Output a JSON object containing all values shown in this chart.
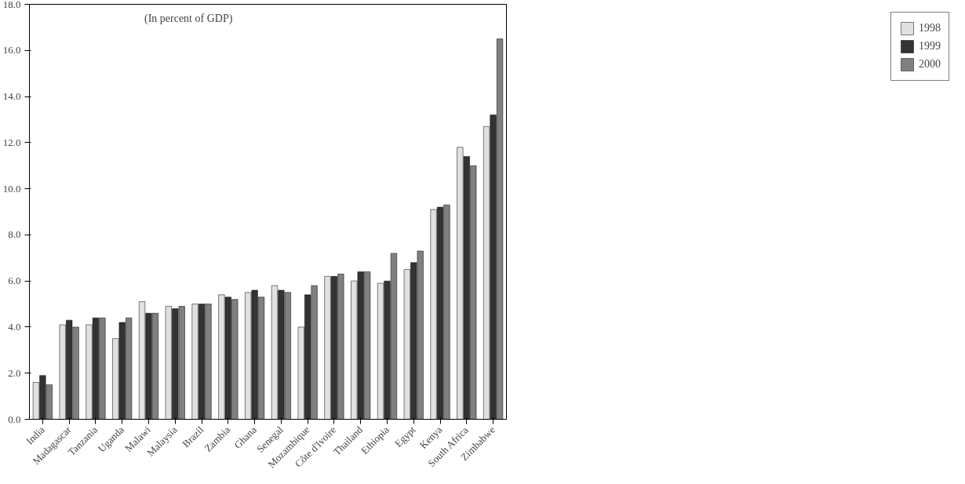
{
  "chart_data": {
    "type": "bar",
    "categories": [
      "India",
      "Madagascar",
      "Tanzania",
      "Uganda",
      "Malawi",
      "Malaysia",
      "Brazil",
      "Zambia",
      "Ghana",
      "Senegal",
      "Mozambique",
      "Côte d'Ivoire",
      "Thailand",
      "Ethiopia",
      "Egypt",
      "Kenya",
      "South Africa",
      "Zimbabwe"
    ],
    "series": [
      {
        "name": "1998",
        "color": "#e0e0e0",
        "values": [
          1.6,
          4.1,
          4.1,
          3.5,
          5.1,
          4.9,
          5.0,
          5.4,
          5.5,
          5.8,
          4.0,
          6.2,
          6.0,
          5.9,
          6.5,
          9.1,
          11.8,
          12.7
        ]
      },
      {
        "name": "1999",
        "color": "#333333",
        "values": [
          1.9,
          4.3,
          4.4,
          4.2,
          4.6,
          4.8,
          5.0,
          5.3,
          5.6,
          5.6,
          5.4,
          6.2,
          6.4,
          6.0,
          6.8,
          9.2,
          11.4,
          13.2
        ]
      },
      {
        "name": "2000",
        "color": "#808080",
        "values": [
          1.5,
          4.0,
          4.4,
          4.4,
          4.6,
          4.9,
          5.0,
          5.2,
          5.3,
          5.5,
          5.8,
          6.3,
          6.4,
          7.2,
          7.3,
          9.3,
          11.0,
          16.5
        ]
      }
    ],
    "ylim": [
      0,
      18
    ],
    "yticks": [
      {
        "value": 0,
        "label": "0.0"
      },
      {
        "value": 2,
        "label": "2.0"
      },
      {
        "value": 4,
        "label": "4.0"
      },
      {
        "value": 6,
        "label": "6.0"
      },
      {
        "value": 8,
        "label": "8.0"
      },
      {
        "value": 10,
        "label": "10.0"
      },
      {
        "value": 12,
        "label": "12.0"
      },
      {
        "value": 14,
        "label": "14.0"
      },
      {
        "value": 16,
        "label": "16.0"
      },
      {
        "value": 18,
        "label": "18.0"
      }
    ],
    "annotations": [
      "(In percent of GDP)"
    ],
    "grid": false,
    "legend": "right"
  }
}
